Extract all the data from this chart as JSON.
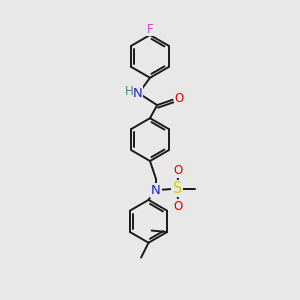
{
  "bg_color": "#e8e8e8",
  "bond_color": "#1a1a1a",
  "lw": 1.4,
  "fs": 8.5,
  "fig_size": [
    3.0,
    3.0
  ],
  "dpi": 100,
  "colors": {
    "F": "#cc44cc",
    "O": "#dd0000",
    "N": "#2222cc",
    "H": "#448888",
    "S": "#cccc00",
    "C": "#1a1a1a"
  },
  "xlim": [
    0,
    10
  ],
  "ylim": [
    0,
    10
  ],
  "ring_r": 0.72
}
